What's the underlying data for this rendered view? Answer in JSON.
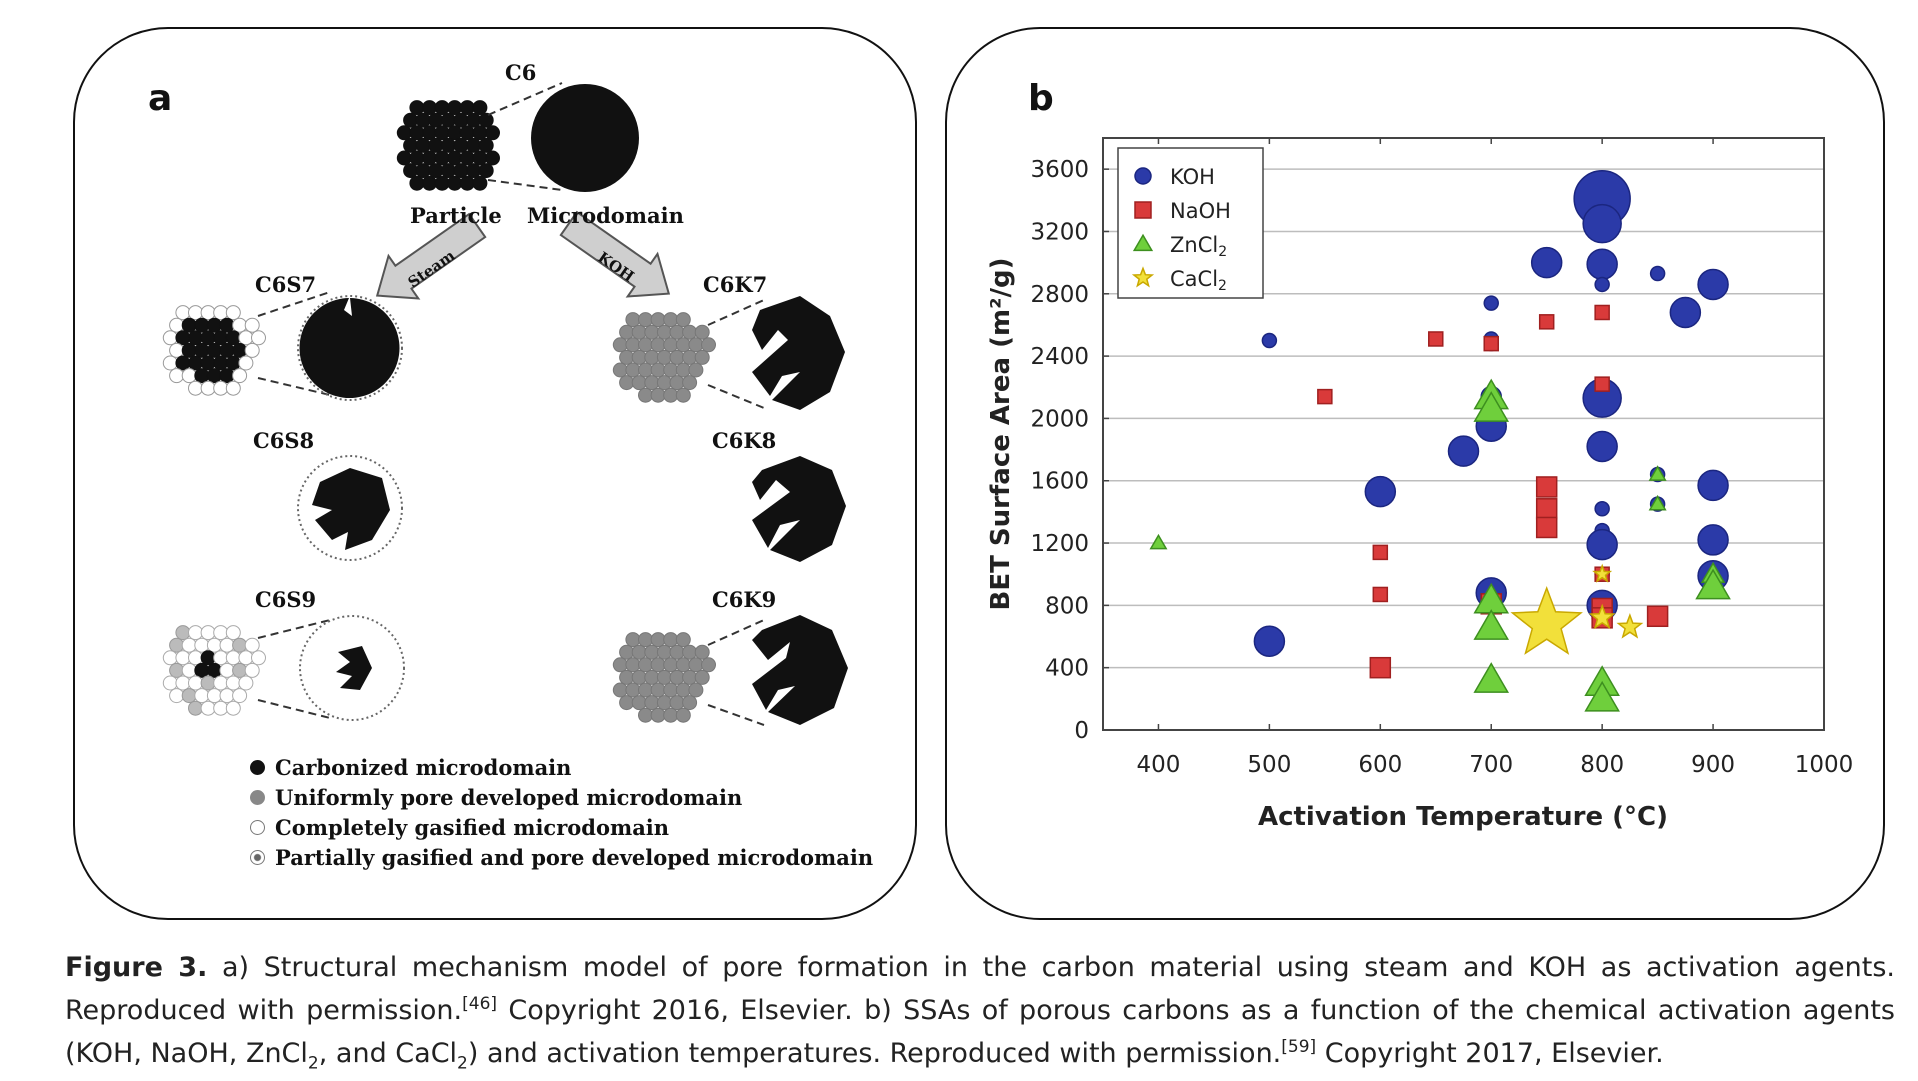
{
  "panel_a": {
    "letter": "a",
    "labels": {
      "c6": "C6",
      "particle": "Particle",
      "microdomain": "Microdomain",
      "c6s7": "C6S7",
      "c6s8": "C6S8",
      "c6s9": "C6S9",
      "c6k7": "C6K7",
      "c6k8": "C6K8",
      "c6k9": "C6K9",
      "steam": "Steam",
      "koh": "KOH"
    },
    "legend": [
      "Carbonized microdomain",
      "Uniformly pore developed microdomain",
      "Completely gasified microdomain",
      "Partially gasified and pore developed microdomain"
    ]
  },
  "panel_b": {
    "letter": "b"
  },
  "chart_data": {
    "type": "scatter",
    "xlabel": "Activation Temperature (°C)",
    "ylabel": "BET Surface Area (m²/g)",
    "xlim": [
      350,
      1000
    ],
    "ylim": [
      0,
      3800
    ],
    "x_ticks": [
      400,
      500,
      600,
      700,
      800,
      900,
      1000
    ],
    "y_ticks": [
      0,
      400,
      800,
      1200,
      1600,
      2000,
      2400,
      2800,
      3200,
      3600
    ],
    "grid": "horizontal",
    "legend_position": "top-left",
    "series": [
      {
        "name": "KOH",
        "marker": "circle",
        "color": "#2b3aa8",
        "points": [
          [
            500,
            2500,
            1
          ],
          [
            500,
            570,
            3
          ],
          [
            600,
            1530,
            3
          ],
          [
            675,
            1790,
            3
          ],
          [
            700,
            2740,
            1
          ],
          [
            700,
            2510,
            1
          ],
          [
            700,
            2480,
            1
          ],
          [
            700,
            2140,
            2
          ],
          [
            700,
            1950,
            3
          ],
          [
            700,
            880,
            3
          ],
          [
            750,
            3000,
            3
          ],
          [
            800,
            3410,
            5
          ],
          [
            800,
            3250,
            4
          ],
          [
            800,
            2990,
            3
          ],
          [
            800,
            2860,
            1
          ],
          [
            800,
            2130,
            4
          ],
          [
            800,
            1820,
            3
          ],
          [
            800,
            1420,
            1
          ],
          [
            800,
            1280,
            1
          ],
          [
            800,
            1190,
            3
          ],
          [
            800,
            1000,
            1
          ],
          [
            800,
            800,
            3
          ],
          [
            800,
            760,
            2
          ],
          [
            850,
            2930,
            1
          ],
          [
            850,
            1640,
            1
          ],
          [
            850,
            1450,
            1
          ],
          [
            875,
            2680,
            3
          ],
          [
            900,
            2860,
            3
          ],
          [
            900,
            1570,
            3
          ],
          [
            900,
            1220,
            3
          ],
          [
            900,
            990,
            3
          ]
        ]
      },
      {
        "name": "NaOH",
        "marker": "square",
        "color": "#d93a3a",
        "points": [
          [
            550,
            2140,
            1
          ],
          [
            600,
            1140,
            1
          ],
          [
            600,
            870,
            1
          ],
          [
            600,
            400,
            2
          ],
          [
            650,
            2510,
            1
          ],
          [
            700,
            2480,
            1
          ],
          [
            700,
            810,
            2
          ],
          [
            750,
            2620,
            1
          ],
          [
            750,
            1560,
            2
          ],
          [
            750,
            1420,
            2
          ],
          [
            750,
            1300,
            2
          ],
          [
            800,
            2680,
            1
          ],
          [
            800,
            2220,
            1
          ],
          [
            800,
            1000,
            1
          ],
          [
            800,
            780,
            2
          ],
          [
            800,
            720,
            2
          ],
          [
            850,
            730,
            2
          ]
        ]
      },
      {
        "name": "ZnCl2",
        "marker": "triangle",
        "color": "#6fcf3c",
        "points": [
          [
            400,
            1200,
            1
          ],
          [
            700,
            2140,
            3
          ],
          [
            700,
            2060,
            3
          ],
          [
            700,
            830,
            3
          ],
          [
            700,
            660,
            3
          ],
          [
            700,
            320,
            3
          ],
          [
            800,
            300,
            3
          ],
          [
            800,
            200,
            3
          ],
          [
            850,
            1640,
            1
          ],
          [
            850,
            1450,
            1
          ],
          [
            900,
            1000,
            2
          ],
          [
            900,
            920,
            3
          ]
        ]
      },
      {
        "name": "CaCl2",
        "marker": "star",
        "color": "#f2e03a",
        "points": [
          [
            750,
            680,
            5
          ],
          [
            800,
            1000,
            1
          ],
          [
            800,
            720,
            2
          ],
          [
            825,
            660,
            2
          ]
        ]
      }
    ]
  },
  "legend_b": [
    {
      "label": "KOH",
      "marker": "circle",
      "color": "#2b3aa8"
    },
    {
      "label": "NaOH",
      "marker": "square",
      "color": "#d93a3a"
    },
    {
      "label": "ZnCl",
      "sub": "2",
      "marker": "triangle",
      "color": "#6fcf3c"
    },
    {
      "label": "CaCl",
      "sub": "2",
      "marker": "star",
      "color": "#f2e03a"
    }
  ],
  "caption": {
    "label": "Figure 3.",
    "part1": " a) Structural mechanism model of pore formation in the carbon material using steam and KOH as activation agents. Reproduced with permission.",
    "ref1": "[46]",
    "part2": " Copyright 2016, Elsevier. b) SSAs of porous carbons as a function of the chemical activation agents (KOH, NaOH, ZnCl",
    "sub1": "2",
    "part3": ", and CaCl",
    "sub2": "2",
    "part4": ") and activation temperatures. Reproduced with permission.",
    "ref2": "[59]",
    "part5": " Copyright 2017, Elsevier."
  }
}
